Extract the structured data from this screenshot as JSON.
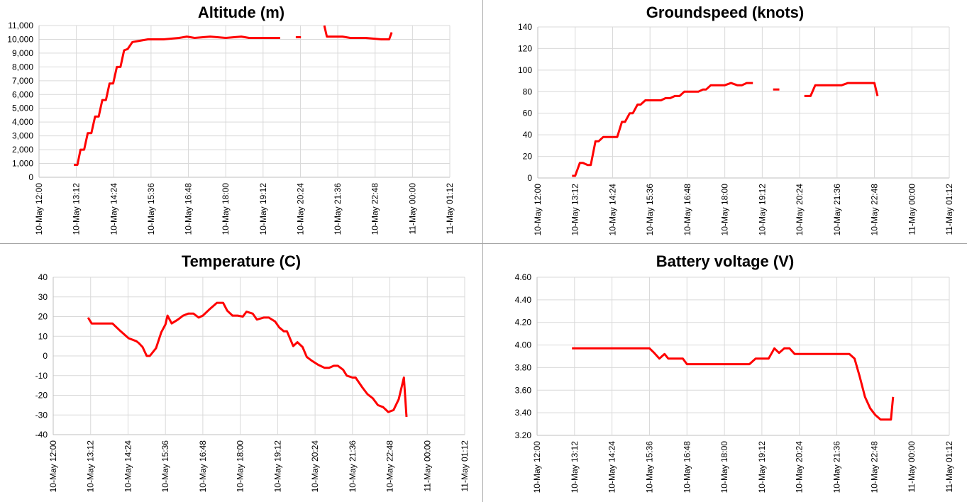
{
  "chart_data": [
    {
      "id": "altitude",
      "type": "line",
      "title": "Altitude (m)",
      "xlabel": "",
      "ylabel": "",
      "ylim": [
        0,
        11000
      ],
      "ytick_step": 1000,
      "ytick_labels": [
        "0",
        "1,000",
        "2,000",
        "3,000",
        "4,000",
        "5,000",
        "6,000",
        "7,000",
        "8,000",
        "9,000",
        "10,000",
        "11,000"
      ],
      "xlim": [
        "10-May 12:00",
        "11-May 01:12"
      ],
      "xtick_labels": [
        "10-May 12:00",
        "10-May 13:12",
        "10-May 14:24",
        "10-May 15:36",
        "10-May 16:48",
        "10-May 18:00",
        "10-May 19:12",
        "10-May 20:24",
        "10-May 21:36",
        "10-May 22:48",
        "11-May 00:00",
        "11-May 01:12"
      ],
      "grid": true,
      "color": "#ff0000",
      "series": [
        {
          "values": [
            [
              "10-May 13:07",
              900
            ],
            [
              "10-May 13:14",
              900
            ],
            [
              "10-May 13:20",
              2000
            ],
            [
              "10-May 13:27",
              2000
            ],
            [
              "10-May 13:34",
              3200
            ],
            [
              "10-May 13:41",
              3200
            ],
            [
              "10-May 13:48",
              4400
            ],
            [
              "10-May 13:55",
              4400
            ],
            [
              "10-May 14:02",
              5600
            ],
            [
              "10-May 14:09",
              5600
            ],
            [
              "10-May 14:16",
              6800
            ],
            [
              "10-May 14:23",
              6800
            ],
            [
              "10-May 14:30",
              8000
            ],
            [
              "10-May 14:37",
              8000
            ],
            [
              "10-May 14:44",
              9200
            ],
            [
              "10-May 14:51",
              9300
            ],
            [
              "10-May 15:00",
              9800
            ],
            [
              "10-May 15:15",
              9900
            ],
            [
              "10-May 15:30",
              10000
            ],
            [
              "10-May 16:00",
              10000
            ],
            [
              "10-May 16:30",
              10100
            ],
            [
              "10-May 16:45",
              10200
            ],
            [
              "10-May 17:00",
              10100
            ],
            [
              "10-May 17:30",
              10200
            ],
            [
              "10-May 18:00",
              10100
            ],
            [
              "10-May 18:30",
              10200
            ],
            [
              "10-May 18:45",
              10100
            ],
            [
              "10-May 19:45",
              10100
            ]
          ]
        },
        {
          "values": [
            [
              "10-May 20:15",
              10150
            ],
            [
              "10-May 20:25",
              10150
            ]
          ]
        },
        {
          "values": [
            [
              "10-May 21:10",
              11000
            ],
            [
              "10-May 21:15",
              10200
            ],
            [
              "10-May 21:45",
              10200
            ],
            [
              "10-May 22:00",
              10100
            ],
            [
              "10-May 22:30",
              10100
            ],
            [
              "10-May 22:45",
              10050
            ],
            [
              "10-May 23:00",
              10000
            ],
            [
              "10-May 23:15",
              10000
            ],
            [
              "10-May 23:20",
              10500
            ]
          ]
        }
      ]
    },
    {
      "id": "groundspeed",
      "type": "line",
      "title": "Groundspeed (knots)",
      "xlabel": "",
      "ylabel": "",
      "ylim": [
        0,
        140
      ],
      "ytick_step": 20,
      "ytick_labels": [
        "0",
        "20",
        "40",
        "60",
        "80",
        "100",
        "120",
        "140"
      ],
      "xlim": [
        "10-May 12:00",
        "11-May 01:12"
      ],
      "xtick_labels": [
        "10-May 12:00",
        "10-May 13:12",
        "10-May 14:24",
        "10-May 15:36",
        "10-May 16:48",
        "10-May 18:00",
        "10-May 19:12",
        "10-May 20:24",
        "10-May 21:36",
        "10-May 22:48",
        "11-May 00:00",
        "11-May 01:12"
      ],
      "grid": true,
      "color": "#ff0000",
      "series": [
        {
          "values": [
            [
              "10-May 13:06",
              2
            ],
            [
              "10-May 13:12",
              2
            ],
            [
              "10-May 13:21",
              14
            ],
            [
              "10-May 13:27",
              14
            ],
            [
              "10-May 13:36",
              12
            ],
            [
              "10-May 13:42",
              12
            ],
            [
              "10-May 13:51",
              34
            ],
            [
              "10-May 13:57",
              34
            ],
            [
              "10-May 14:06",
              38
            ],
            [
              "10-May 14:24",
              38
            ],
            [
              "10-May 14:33",
              38
            ],
            [
              "10-May 14:42",
              52
            ],
            [
              "10-May 14:48",
              52
            ],
            [
              "10-May 14:57",
              60
            ],
            [
              "10-May 15:03",
              60
            ],
            [
              "10-May 15:12",
              68
            ],
            [
              "10-May 15:18",
              68
            ],
            [
              "10-May 15:27",
              72
            ],
            [
              "10-May 15:57",
              72
            ],
            [
              "10-May 16:06",
              74
            ],
            [
              "10-May 16:15",
              74
            ],
            [
              "10-May 16:24",
              76
            ],
            [
              "10-May 16:33",
              76
            ],
            [
              "10-May 16:42",
              80
            ],
            [
              "10-May 17:09",
              80
            ],
            [
              "10-May 17:18",
              82
            ],
            [
              "10-May 17:24",
              82
            ],
            [
              "10-May 17:33",
              86
            ],
            [
              "10-May 18:00",
              86
            ],
            [
              "10-May 18:12",
              88
            ],
            [
              "10-May 18:24",
              86
            ],
            [
              "10-May 18:33",
              86
            ],
            [
              "10-May 18:42",
              88
            ],
            [
              "10-May 18:54",
              88
            ]
          ]
        },
        {
          "values": [
            [
              "10-May 19:33",
              82
            ],
            [
              "10-May 19:45",
              82
            ]
          ]
        },
        {
          "values": [
            [
              "10-May 20:33",
              76
            ],
            [
              "10-May 20:45",
              76
            ],
            [
              "10-May 20:54",
              86
            ],
            [
              "10-May 21:45",
              86
            ],
            [
              "10-May 21:57",
              88
            ],
            [
              "10-May 22:48",
              88
            ],
            [
              "10-May 22:54",
              76
            ]
          ]
        }
      ]
    },
    {
      "id": "temperature",
      "type": "line",
      "title": "Temperature (C)",
      "xlabel": "",
      "ylabel": "",
      "ylim": [
        -40,
        40
      ],
      "ytick_step": 10,
      "ytick_labels": [
        "-40",
        "-30",
        "-20",
        "-10",
        "0",
        "10",
        "20",
        "30",
        "40"
      ],
      "xlim": [
        "10-May 12:00",
        "11-May 01:12"
      ],
      "xtick_labels": [
        "10-May 12:00",
        "10-May 13:12",
        "10-May 14:24",
        "10-May 15:36",
        "10-May 16:48",
        "10-May 18:00",
        "10-May 19:12",
        "10-May 20:24",
        "10-May 21:36",
        "10-May 22:48",
        "11-May 00:00",
        "11-May 01:12"
      ],
      "grid": true,
      "color": "#ff0000",
      "series": [
        {
          "values": [
            [
              "10-May 13:07",
              19.5
            ],
            [
              "10-May 13:14",
              16.5
            ],
            [
              "10-May 13:40",
              16.5
            ],
            [
              "10-May 13:54",
              16.5
            ],
            [
              "10-May 14:10",
              12.5
            ],
            [
              "10-May 14:25",
              9
            ],
            [
              "10-May 14:40",
              7.5
            ],
            [
              "10-May 14:45",
              6.5
            ],
            [
              "10-May 14:52",
              4.5
            ],
            [
              "10-May 15:00",
              0
            ],
            [
              "10-May 15:06",
              0
            ],
            [
              "10-May 15:18",
              4
            ],
            [
              "10-May 15:28",
              12
            ],
            [
              "10-May 15:36",
              16
            ],
            [
              "10-May 15:40",
              20.5
            ],
            [
              "10-May 15:48",
              16.5
            ],
            [
              "10-May 16:00",
              18.5
            ],
            [
              "10-May 16:10",
              20.5
            ],
            [
              "10-May 16:20",
              21.5
            ],
            [
              "10-May 16:30",
              21.5
            ],
            [
              "10-May 16:40",
              19.5
            ],
            [
              "10-May 16:48",
              20.5
            ],
            [
              "10-May 17:00",
              23.5
            ],
            [
              "10-May 17:15",
              27
            ],
            [
              "10-May 17:27",
              27
            ],
            [
              "10-May 17:35",
              23
            ],
            [
              "10-May 17:45",
              20.5
            ],
            [
              "10-May 17:55",
              20.5
            ],
            [
              "10-May 18:05",
              20
            ],
            [
              "10-May 18:12",
              22.5
            ],
            [
              "10-May 18:24",
              21.5
            ],
            [
              "10-May 18:32",
              18.5
            ],
            [
              "10-May 18:45",
              19.5
            ],
            [
              "10-May 18:55",
              19.5
            ],
            [
              "10-May 19:07",
              17.5
            ],
            [
              "10-May 19:15",
              14.5
            ],
            [
              "10-May 19:24",
              12.5
            ],
            [
              "10-May 19:30",
              12.5
            ],
            [
              "10-May 19:42",
              5
            ],
            [
              "10-May 19:50",
              7
            ],
            [
              "10-May 20:00",
              4.5
            ],
            [
              "10-May 20:08",
              -0.5
            ],
            [
              "10-May 20:18",
              -2.5
            ],
            [
              "10-May 20:30",
              -4.5
            ],
            [
              "10-May 20:42",
              -6
            ],
            [
              "10-May 20:51",
              -6
            ],
            [
              "10-May 21:00",
              -5
            ],
            [
              "10-May 21:08",
              -5
            ],
            [
              "10-May 21:18",
              -7
            ],
            [
              "10-May 21:25",
              -10
            ],
            [
              "10-May 21:36",
              -11
            ],
            [
              "10-May 21:42",
              -11
            ],
            [
              "10-May 21:55",
              -16
            ],
            [
              "10-May 22:05",
              -19.5
            ],
            [
              "10-May 22:15",
              -21.5
            ],
            [
              "10-May 22:25",
              -25
            ],
            [
              "10-May 22:35",
              -26
            ],
            [
              "10-May 22:45",
              -28.5
            ],
            [
              "10-May 22:55",
              -27.5
            ],
            [
              "10-May 23:05",
              -22
            ],
            [
              "10-May 23:15",
              -11
            ],
            [
              "10-May 23:20",
              -31
            ]
          ]
        }
      ]
    },
    {
      "id": "battery",
      "type": "line",
      "title": "Battery voltage (V)",
      "xlabel": "",
      "ylabel": "",
      "ylim": [
        3.2,
        4.6
      ],
      "ytick_step": 0.2,
      "ytick_labels": [
        "3.20",
        "3.40",
        "3.60",
        "3.80",
        "4.00",
        "4.20",
        "4.40",
        "4.60"
      ],
      "xlim": [
        "10-May 12:00",
        "11-May 01:12"
      ],
      "xtick_labels": [
        "10-May 12:00",
        "10-May 13:12",
        "10-May 14:24",
        "10-May 15:36",
        "10-May 16:48",
        "10-May 18:00",
        "10-May 19:12",
        "10-May 20:24",
        "10-May 21:36",
        "10-May 22:48",
        "11-May 00:00",
        "11-May 01:12"
      ],
      "grid": true,
      "color": "#ff0000",
      "series": [
        {
          "values": [
            [
              "10-May 13:07",
              3.97
            ],
            [
              "10-May 15:30",
              3.97
            ],
            [
              "10-May 15:36",
              3.97
            ],
            [
              "10-May 15:45",
              3.93
            ],
            [
              "10-May 15:55",
              3.88
            ],
            [
              "10-May 16:05",
              3.92
            ],
            [
              "10-May 16:12",
              3.88
            ],
            [
              "10-May 16:40",
              3.88
            ],
            [
              "10-May 16:48",
              3.83
            ],
            [
              "10-May 18:48",
              3.83
            ],
            [
              "10-May 19:00",
              3.88
            ],
            [
              "10-May 19:25",
              3.88
            ],
            [
              "10-May 19:36",
              3.97
            ],
            [
              "10-May 19:45",
              3.93
            ],
            [
              "10-May 19:55",
              3.97
            ],
            [
              "10-May 20:05",
              3.97
            ],
            [
              "10-May 20:15",
              3.92
            ],
            [
              "10-May 20:40",
              3.92
            ],
            [
              "10-May 21:00",
              3.92
            ],
            [
              "10-May 22:00",
              3.92
            ],
            [
              "10-May 22:10",
              3.88
            ],
            [
              "10-May 22:20",
              3.72
            ],
            [
              "10-May 22:30",
              3.54
            ],
            [
              "10-May 22:40",
              3.44
            ],
            [
              "10-May 22:50",
              3.38
            ],
            [
              "10-May 23:00",
              3.34
            ],
            [
              "10-May 23:20",
              3.34
            ],
            [
              "10-May 23:24",
              3.54
            ]
          ]
        }
      ]
    }
  ]
}
